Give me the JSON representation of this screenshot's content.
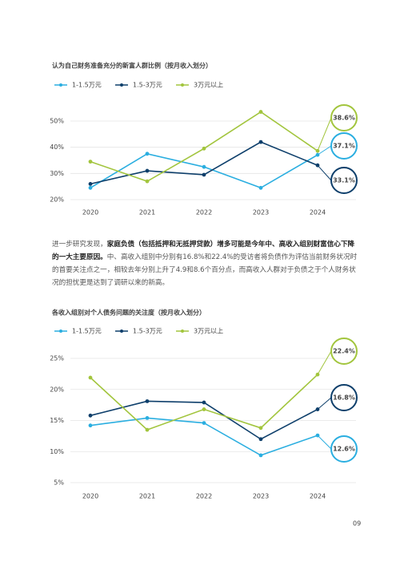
{
  "chart_data": [
    {
      "type": "line",
      "title": "认为自己财务准备充分的新富人群比例（按月收入划分）",
      "categories": [
        "2020",
        "2021",
        "2022",
        "2023",
        "2024"
      ],
      "series": [
        {
          "name": "1-1.5万元",
          "color": "#2aaee0",
          "values": [
            24.5,
            37.5,
            32.5,
            24.5,
            37.1
          ],
          "value_labels": [
            null,
            null,
            null,
            null,
            "37.1%"
          ]
        },
        {
          "name": "1.5-3万元",
          "color": "#0e3f6b",
          "values": [
            26,
            31,
            29.5,
            42,
            33.1
          ],
          "value_labels": [
            null,
            null,
            null,
            null,
            "33.1%"
          ]
        },
        {
          "name": "3万元以上",
          "color": "#a2c53d",
          "values": [
            34.5,
            27,
            39.5,
            53.5,
            38.6
          ],
          "value_labels": [
            null,
            null,
            null,
            null,
            "38.6%"
          ]
        }
      ],
      "ylim": [
        20,
        50
      ],
      "yticks": [
        {
          "value": 20,
          "label": "20%"
        },
        {
          "value": 30,
          "label": "30%"
        },
        {
          "value": 40,
          "label": "40%"
        },
        {
          "value": 50,
          "label": "50%"
        }
      ],
      "grid": true
    },
    {
      "type": "line",
      "title": "各收入组别对个人债务问题的关注度（按月收入划分）",
      "categories": [
        "2020",
        "2021",
        "2022",
        "2023",
        "2024"
      ],
      "series": [
        {
          "name": "1-1.5万元",
          "color": "#2aaee0",
          "values": [
            14.2,
            15.4,
            14.6,
            9.4,
            12.6
          ],
          "value_labels": [
            null,
            null,
            null,
            null,
            "12.6%"
          ]
        },
        {
          "name": "1.5-3万元",
          "color": "#0e3f6b",
          "values": [
            15.8,
            18.1,
            17.9,
            12.0,
            16.8
          ],
          "value_labels": [
            null,
            null,
            null,
            null,
            "16.8%"
          ]
        },
        {
          "name": "3万元以上",
          "color": "#a2c53d",
          "values": [
            21.9,
            13.5,
            16.8,
            13.8,
            22.4
          ],
          "value_labels": [
            null,
            null,
            null,
            null,
            "22.4%"
          ]
        }
      ],
      "ylim": [
        5,
        25
      ],
      "yticks": [
        {
          "value": 5,
          "label": "5%"
        },
        {
          "value": 10,
          "label": "10%"
        },
        {
          "value": 15,
          "label": "15%"
        },
        {
          "value": 20,
          "label": "20%"
        },
        {
          "value": 25,
          "label": "25%"
        }
      ],
      "grid": true
    }
  ],
  "paragraph": [
    "进一步研究发现，",
    "家庭负债（包括抵押和无抵押贷款）增多可能是今年中、高收入组别财富信心下降的一大主要原因。",
    "中、高收入组别中分别有16.8%和22.4%的受访者将负债作为评估当前财务状况时的首要关注点之一，相较去年分别上升了4.9和8.6个百分点，而高收入人群对于负债之于个人财务状况的担忧更是达到了调研以来的新高。"
  ],
  "page_number": "09"
}
